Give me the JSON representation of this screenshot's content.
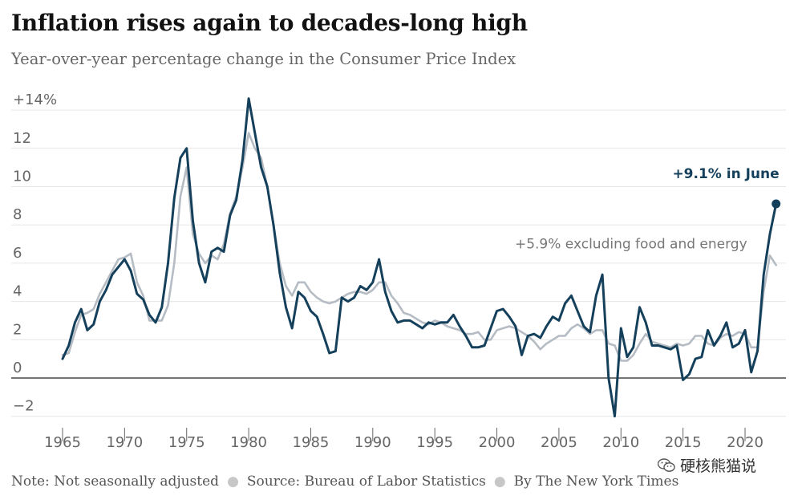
{
  "title": "Inflation rises again to decades-long high",
  "subtitle": "Year-over-year percentage change in the Consumer Price Index",
  "footer": {
    "note": "Note: Not seasonally adjusted",
    "source": "Source: Bureau of Labor Statistics",
    "byline": "By The New York Times"
  },
  "watermark": {
    "text": "硬核熊猫说",
    "icon": "wechat-icon"
  },
  "colors": {
    "cpi": "#15405c",
    "core": "#b5bcc4",
    "grid": "#e6e6e6",
    "zero": "#222222"
  },
  "chart_data": {
    "type": "line",
    "xlim": [
      1963.5,
      2024
    ],
    "ylim": [
      -3,
      15
    ],
    "x_ticks": [
      1965,
      1970,
      1975,
      1980,
      1985,
      1990,
      1995,
      2000,
      2005,
      2010,
      2015,
      2020
    ],
    "x_tick_labels": [
      "1965",
      "1970",
      "1975",
      "1980",
      "1985",
      "1990",
      "1995",
      "2000",
      "2005",
      "2010",
      "2015",
      "2020"
    ],
    "y_ticks": [
      -2,
      0,
      2,
      4,
      6,
      8,
      10,
      12,
      14
    ],
    "y_tick_labels": [
      "−2",
      "0",
      "2",
      "4",
      "6",
      "8",
      "10",
      "12",
      "+14%"
    ],
    "grid": "horizontal",
    "annotations": [
      {
        "text": "+9.1% in June",
        "series": "cpi"
      },
      {
        "text": "+5.9% excluding food and energy",
        "series": "core"
      }
    ],
    "series": [
      {
        "key": "cpi",
        "x": [
          1965,
          1965.5,
          1966,
          1966.5,
          1967,
          1967.5,
          1968,
          1968.5,
          1969,
          1969.5,
          1970,
          1970.5,
          1971,
          1971.5,
          1972,
          1972.5,
          1973,
          1973.5,
          1974,
          1974.5,
          1975,
          1975.5,
          1976,
          1976.5,
          1977,
          1977.5,
          1978,
          1978.5,
          1979,
          1979.5,
          1980,
          1980.5,
          1981,
          1981.5,
          1982,
          1982.5,
          1983,
          1983.5,
          1984,
          1984.5,
          1985,
          1985.5,
          1986,
          1986.5,
          1987,
          1987.5,
          1988,
          1988.5,
          1989,
          1989.5,
          1990,
          1990.5,
          1991,
          1991.5,
          1992,
          1992.5,
          1993,
          1993.5,
          1994,
          1994.5,
          1995,
          1995.5,
          1996,
          1996.5,
          1997,
          1997.5,
          1998,
          1998.5,
          1999,
          1999.5,
          2000,
          2000.5,
          2001,
          2001.5,
          2002,
          2002.5,
          2003,
          2003.5,
          2004,
          2004.5,
          2005,
          2005.5,
          2006,
          2006.5,
          2007,
          2007.5,
          2008,
          2008.5,
          2009,
          2009.5,
          2010,
          2010.5,
          2011,
          2011.5,
          2012,
          2012.5,
          2013,
          2013.5,
          2014,
          2014.5,
          2015,
          2015.5,
          2016,
          2016.5,
          2017,
          2017.5,
          2018,
          2018.5,
          2019,
          2019.5,
          2020,
          2020.5,
          2021,
          2021.5,
          2022,
          2022.5
        ],
        "y": [
          1.0,
          1.7,
          2.9,
          3.6,
          2.5,
          2.8,
          4.0,
          4.6,
          5.4,
          5.8,
          6.2,
          5.6,
          4.4,
          4.1,
          3.3,
          2.9,
          3.7,
          6.0,
          9.4,
          11.5,
          12.0,
          8.2,
          6.0,
          5.0,
          6.6,
          6.8,
          6.6,
          8.5,
          9.3,
          11.4,
          14.6,
          12.8,
          11.0,
          10.0,
          8.0,
          5.5,
          3.7,
          2.6,
          4.5,
          4.2,
          3.5,
          3.2,
          2.3,
          1.3,
          1.4,
          4.2,
          4.0,
          4.2,
          4.8,
          4.6,
          5.0,
          6.2,
          4.5,
          3.5,
          2.9,
          3.0,
          3.0,
          2.8,
          2.6,
          2.9,
          2.8,
          2.9,
          2.9,
          3.3,
          2.7,
          2.2,
          1.6,
          1.6,
          1.7,
          2.6,
          3.5,
          3.6,
          3.2,
          2.7,
          1.2,
          2.2,
          2.3,
          2.1,
          2.7,
          3.2,
          3.0,
          3.9,
          4.3,
          3.5,
          2.7,
          2.4,
          4.3,
          5.4,
          0.0,
          -2.0,
          2.6,
          1.1,
          1.6,
          3.7,
          2.9,
          1.7,
          1.7,
          1.6,
          1.5,
          1.7,
          -0.1,
          0.2,
          1.0,
          1.1,
          2.5,
          1.7,
          2.2,
          2.9,
          1.6,
          1.8,
          2.5,
          0.3,
          1.4,
          5.4,
          7.5,
          9.1
        ]
      },
      {
        "key": "core",
        "x": [
          1965,
          1965.5,
          1966,
          1966.5,
          1967,
          1967.5,
          1968,
          1968.5,
          1969,
          1969.5,
          1970,
          1970.5,
          1971,
          1971.5,
          1972,
          1972.5,
          1973,
          1973.5,
          1974,
          1974.5,
          1975,
          1975.5,
          1976,
          1976.5,
          1977,
          1977.5,
          1978,
          1978.5,
          1979,
          1979.5,
          1980,
          1980.5,
          1981,
          1981.5,
          1982,
          1982.5,
          1983,
          1983.5,
          1984,
          1984.5,
          1985,
          1985.5,
          1986,
          1986.5,
          1987,
          1987.5,
          1988,
          1988.5,
          1989,
          1989.5,
          1990,
          1990.5,
          1991,
          1991.5,
          1992,
          1992.5,
          1993,
          1993.5,
          1994,
          1994.5,
          1995,
          1995.5,
          1996,
          1996.5,
          1997,
          1997.5,
          1998,
          1998.5,
          1999,
          1999.5,
          2000,
          2000.5,
          2001,
          2001.5,
          2002,
          2002.5,
          2003,
          2003.5,
          2004,
          2004.5,
          2005,
          2005.5,
          2006,
          2006.5,
          2007,
          2007.5,
          2008,
          2008.5,
          2009,
          2009.5,
          2010,
          2010.5,
          2011,
          2011.5,
          2012,
          2012.5,
          2013,
          2013.5,
          2014,
          2014.5,
          2015,
          2015.5,
          2016,
          2016.5,
          2017,
          2017.5,
          2018,
          2018.5,
          2019,
          2019.5,
          2020,
          2020.5,
          2021,
          2021.5,
          2022,
          2022.5
        ],
        "y": [
          1.2,
          1.3,
          2.4,
          3.3,
          3.4,
          3.6,
          4.4,
          5.0,
          5.6,
          6.2,
          6.3,
          6.5,
          5.0,
          4.3,
          3.0,
          3.0,
          3.0,
          3.8,
          6.0,
          9.5,
          11.0,
          7.5,
          6.5,
          6.0,
          6.4,
          6.2,
          7.0,
          8.6,
          9.5,
          11.0,
          12.8,
          12.0,
          11.5,
          10.0,
          8.0,
          6.0,
          4.8,
          4.3,
          5.0,
          5.0,
          4.5,
          4.2,
          4.0,
          3.9,
          4.0,
          4.2,
          4.4,
          4.5,
          4.5,
          4.4,
          4.6,
          5.0,
          5.0,
          4.3,
          3.9,
          3.4,
          3.3,
          3.1,
          2.9,
          2.8,
          3.0,
          2.9,
          2.7,
          2.6,
          2.5,
          2.3,
          2.3,
          2.4,
          2.0,
          2.0,
          2.5,
          2.6,
          2.7,
          2.6,
          2.4,
          2.2,
          1.9,
          1.5,
          1.8,
          2.0,
          2.2,
          2.2,
          2.6,
          2.8,
          2.6,
          2.3,
          2.5,
          2.5,
          1.8,
          1.7,
          0.9,
          0.9,
          1.2,
          1.8,
          2.3,
          1.9,
          1.8,
          1.7,
          1.6,
          1.8,
          1.7,
          1.8,
          2.2,
          2.2,
          1.8,
          1.7,
          2.1,
          2.3,
          2.2,
          2.4,
          2.3,
          1.6,
          1.6,
          4.5,
          6.4,
          5.9
        ]
      }
    ]
  }
}
